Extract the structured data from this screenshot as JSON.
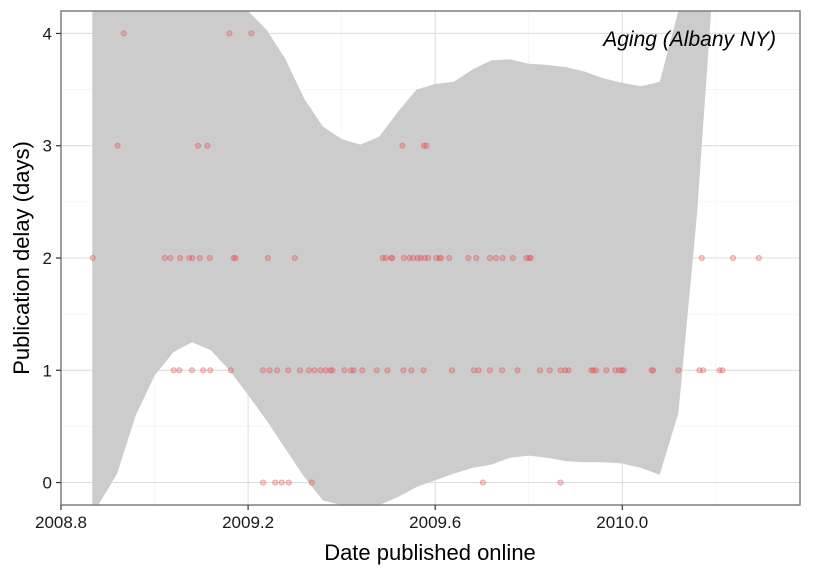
{
  "chart_data": {
    "type": "scatter",
    "annotation": "Aging (Albany NY)",
    "xlabel": "Date published online",
    "ylabel": "Publication delay (days)",
    "xlim": [
      2008.8,
      2010.38
    ],
    "ylim": [
      -0.2,
      4.2
    ],
    "x_ticks": [
      2008.8,
      2009.2,
      2009.6,
      2010.0
    ],
    "x_tick_labels": [
      "2008.8",
      "2009.2",
      "2009.6",
      "2010.0"
    ],
    "y_ticks": [
      0,
      1,
      2,
      3,
      4
    ],
    "y_tick_labels": [
      "0",
      "1",
      "2",
      "3",
      "4"
    ],
    "grid": true,
    "point_color": "#e8474a",
    "band_color": "#cccccc",
    "panel_border_color": "#7f7f7f",
    "points": [
      {
        "x": 2008.868,
        "y": 2
      },
      {
        "x": 2008.921,
        "y": 3
      },
      {
        "x": 2008.934,
        "y": 4
      },
      {
        "x": 2009.022,
        "y": 2
      },
      {
        "x": 2009.034,
        "y": 2
      },
      {
        "x": 2009.055,
        "y": 2
      },
      {
        "x": 2009.074,
        "y": 2
      },
      {
        "x": 2009.081,
        "y": 2
      },
      {
        "x": 2009.097,
        "y": 2
      },
      {
        "x": 2009.118,
        "y": 2
      },
      {
        "x": 2009.169,
        "y": 2
      },
      {
        "x": 2009.173,
        "y": 2
      },
      {
        "x": 2009.242,
        "y": 2
      },
      {
        "x": 2009.3,
        "y": 2
      },
      {
        "x": 2009.488,
        "y": 2
      },
      {
        "x": 2009.494,
        "y": 2
      },
      {
        "x": 2009.506,
        "y": 2
      },
      {
        "x": 2009.508,
        "y": 2
      },
      {
        "x": 2009.533,
        "y": 2
      },
      {
        "x": 2009.545,
        "y": 2
      },
      {
        "x": 2009.553,
        "y": 2
      },
      {
        "x": 2009.563,
        "y": 2
      },
      {
        "x": 2009.569,
        "y": 2
      },
      {
        "x": 2009.578,
        "y": 2
      },
      {
        "x": 2009.585,
        "y": 2
      },
      {
        "x": 2009.602,
        "y": 2
      },
      {
        "x": 2009.609,
        "y": 2
      },
      {
        "x": 2009.613,
        "y": 2
      },
      {
        "x": 2009.63,
        "y": 2
      },
      {
        "x": 2009.671,
        "y": 2
      },
      {
        "x": 2009.688,
        "y": 2
      },
      {
        "x": 2009.717,
        "y": 2
      },
      {
        "x": 2009.73,
        "y": 2
      },
      {
        "x": 2009.744,
        "y": 2
      },
      {
        "x": 2009.766,
        "y": 2
      },
      {
        "x": 2009.795,
        "y": 2
      },
      {
        "x": 2009.801,
        "y": 2
      },
      {
        "x": 2009.804,
        "y": 2
      },
      {
        "x": 2010.17,
        "y": 2
      },
      {
        "x": 2010.237,
        "y": 2
      },
      {
        "x": 2010.292,
        "y": 2
      },
      {
        "x": 2009.093,
        "y": 3
      },
      {
        "x": 2009.113,
        "y": 3
      },
      {
        "x": 2009.53,
        "y": 3
      },
      {
        "x": 2009.576,
        "y": 3
      },
      {
        "x": 2009.581,
        "y": 3
      },
      {
        "x": 2009.16,
        "y": 4
      },
      {
        "x": 2009.207,
        "y": 4
      },
      {
        "x": 2009.041,
        "y": 1
      },
      {
        "x": 2009.053,
        "y": 1
      },
      {
        "x": 2009.08,
        "y": 1
      },
      {
        "x": 2009.104,
        "y": 1
      },
      {
        "x": 2009.119,
        "y": 1
      },
      {
        "x": 2009.163,
        "y": 1
      },
      {
        "x": 2009.232,
        "y": 1
      },
      {
        "x": 2009.246,
        "y": 1
      },
      {
        "x": 2009.262,
        "y": 1
      },
      {
        "x": 2009.286,
        "y": 1
      },
      {
        "x": 2009.311,
        "y": 1
      },
      {
        "x": 2009.33,
        "y": 1
      },
      {
        "x": 2009.342,
        "y": 1
      },
      {
        "x": 2009.355,
        "y": 1
      },
      {
        "x": 2009.366,
        "y": 1
      },
      {
        "x": 2009.376,
        "y": 1
      },
      {
        "x": 2009.38,
        "y": 1
      },
      {
        "x": 2009.406,
        "y": 1
      },
      {
        "x": 2009.42,
        "y": 1
      },
      {
        "x": 2009.426,
        "y": 1
      },
      {
        "x": 2009.444,
        "y": 1
      },
      {
        "x": 2009.475,
        "y": 1
      },
      {
        "x": 2009.498,
        "y": 1
      },
      {
        "x": 2009.532,
        "y": 1
      },
      {
        "x": 2009.549,
        "y": 1
      },
      {
        "x": 2009.575,
        "y": 1
      },
      {
        "x": 2009.636,
        "y": 1
      },
      {
        "x": 2009.683,
        "y": 1
      },
      {
        "x": 2009.693,
        "y": 1
      },
      {
        "x": 2009.717,
        "y": 1
      },
      {
        "x": 2009.743,
        "y": 1
      },
      {
        "x": 2009.776,
        "y": 1
      },
      {
        "x": 2009.824,
        "y": 1
      },
      {
        "x": 2009.845,
        "y": 1
      },
      {
        "x": 2009.868,
        "y": 1
      },
      {
        "x": 2009.878,
        "y": 1
      },
      {
        "x": 2009.885,
        "y": 1
      },
      {
        "x": 2009.934,
        "y": 1
      },
      {
        "x": 2009.938,
        "y": 1
      },
      {
        "x": 2009.944,
        "y": 1
      },
      {
        "x": 2009.966,
        "y": 1
      },
      {
        "x": 2009.985,
        "y": 1
      },
      {
        "x": 2009.993,
        "y": 1
      },
      {
        "x": 2009.999,
        "y": 1
      },
      {
        "x": 2010.003,
        "y": 1
      },
      {
        "x": 2010.063,
        "y": 1
      },
      {
        "x": 2010.066,
        "y": 1
      },
      {
        "x": 2010.12,
        "y": 1
      },
      {
        "x": 2010.165,
        "y": 1
      },
      {
        "x": 2010.173,
        "y": 1
      },
      {
        "x": 2010.208,
        "y": 1
      },
      {
        "x": 2010.214,
        "y": 1
      },
      {
        "x": 2009.232,
        "y": 0
      },
      {
        "x": 2009.258,
        "y": 0
      },
      {
        "x": 2009.272,
        "y": 0
      },
      {
        "x": 2009.287,
        "y": 0
      },
      {
        "x": 2009.336,
        "y": 0
      },
      {
        "x": 2009.702,
        "y": 0
      },
      {
        "x": 2009.868,
        "y": 0
      }
    ],
    "confidence_band": {
      "x": [
        2008.867,
        2008.88,
        2008.92,
        2008.96,
        2009.0,
        2009.04,
        2009.08,
        2009.12,
        2009.16,
        2009.2,
        2009.24,
        2009.28,
        2009.32,
        2009.36,
        2009.4,
        2009.44,
        2009.48,
        2009.52,
        2009.56,
        2009.6,
        2009.64,
        2009.68,
        2009.72,
        2009.76,
        2009.8,
        2009.84,
        2009.88,
        2009.92,
        2009.96,
        2010.0,
        2010.04,
        2010.08,
        2010.12,
        2010.16,
        2010.19
      ],
      "upper": [
        4.2,
        4.2,
        4.2,
        4.2,
        4.2,
        4.2,
        4.2,
        4.2,
        4.2,
        4.2,
        4.03,
        3.77,
        3.42,
        3.17,
        3.06,
        3.01,
        3.08,
        3.3,
        3.5,
        3.55,
        3.57,
        3.68,
        3.76,
        3.77,
        3.73,
        3.72,
        3.7,
        3.66,
        3.6,
        3.56,
        3.53,
        3.57,
        4.2,
        4.2,
        4.2
      ],
      "lower": [
        -0.2,
        -0.2,
        0.08,
        0.6,
        0.95,
        1.16,
        1.25,
        1.18,
        1.0,
        0.78,
        0.55,
        0.3,
        0.05,
        -0.16,
        -0.2,
        -0.2,
        -0.2,
        -0.13,
        -0.04,
        0.02,
        0.08,
        0.13,
        0.16,
        0.22,
        0.24,
        0.22,
        0.19,
        0.18,
        0.18,
        0.17,
        0.13,
        0.07,
        0.62,
        2.4,
        4.2
      ]
    }
  }
}
